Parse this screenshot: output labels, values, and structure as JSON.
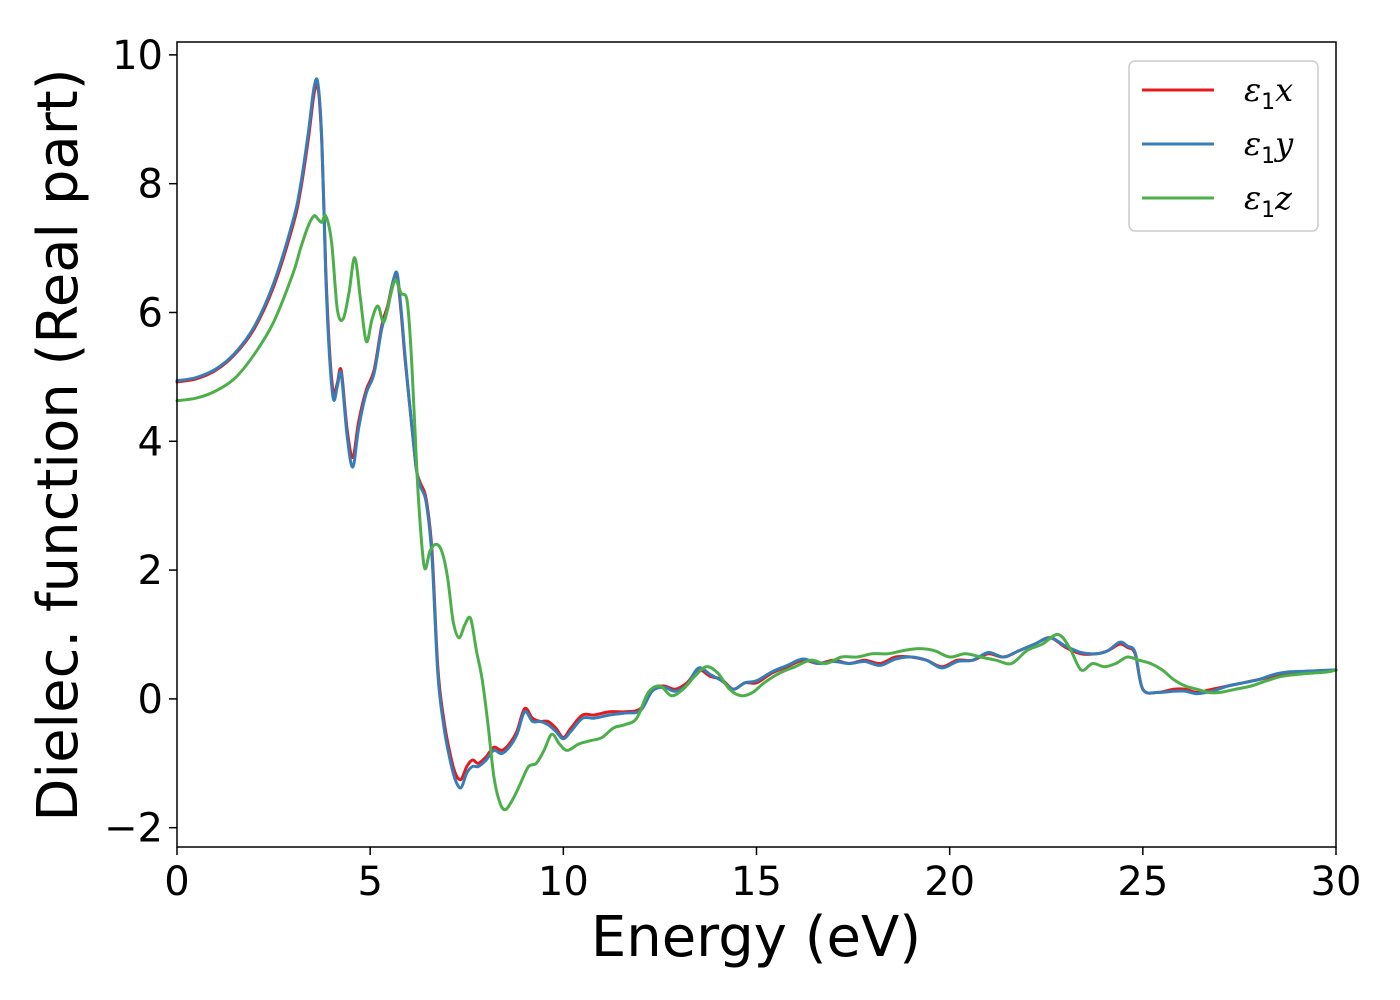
{
  "chart_data": {
    "type": "line",
    "xlabel": "Energy (eV)",
    "ylabel": "Dielec. function (Real part)",
    "xlim": [
      0,
      30
    ],
    "ylim": [
      -2.3,
      10.2
    ],
    "xticks": [
      0,
      5,
      10,
      15,
      20,
      25,
      30
    ],
    "xtick_labels": [
      "0",
      "5",
      "10",
      "15",
      "20",
      "25",
      "30"
    ],
    "yticks": [
      -2,
      0,
      2,
      4,
      6,
      8,
      10
    ],
    "ytick_labels": [
      "−2",
      "0",
      "2",
      "4",
      "6",
      "8",
      "10"
    ],
    "grid": false,
    "legend_position": "top-right",
    "series": [
      {
        "name": "ε1x",
        "legend_base": "ε",
        "legend_sub": "1",
        "legend_var": "x",
        "color": "#e41a1c",
        "x": [
          0,
          0.5,
          1,
          1.5,
          2,
          2.5,
          3,
          3.2,
          3.4,
          3.55,
          3.65,
          3.75,
          3.85,
          3.95,
          4.05,
          4.15,
          4.25,
          4.4,
          4.55,
          4.7,
          4.9,
          5.1,
          5.3,
          5.45,
          5.6,
          5.7,
          5.8,
          5.9,
          6.0,
          6.1,
          6.2,
          6.3,
          6.45,
          6.6,
          6.75,
          6.9,
          7.05,
          7.2,
          7.35,
          7.5,
          7.65,
          7.8,
          8.0,
          8.2,
          8.4,
          8.6,
          8.8,
          9.0,
          9.2,
          9.4,
          9.6,
          9.8,
          10.0,
          10.2,
          10.5,
          10.8,
          11.2,
          11.6,
          12.0,
          12.3,
          12.6,
          12.9,
          13.2,
          13.5,
          13.8,
          14.1,
          14.4,
          14.7,
          15.0,
          15.4,
          15.8,
          16.2,
          16.6,
          17.0,
          17.4,
          17.8,
          18.2,
          18.6,
          19.0,
          19.4,
          19.8,
          20.2,
          20.6,
          21.0,
          21.4,
          21.8,
          22.2,
          22.6,
          23.0,
          23.4,
          23.8,
          24.1,
          24.4,
          24.6,
          24.8,
          25.0,
          25.4,
          25.8,
          26.1,
          26.4,
          26.8,
          27.2,
          27.6,
          28.0,
          28.4,
          28.8,
          29.2,
          29.6,
          30.0
        ],
        "y": [
          4.92,
          4.97,
          5.1,
          5.35,
          5.75,
          6.4,
          7.35,
          7.9,
          8.7,
          9.4,
          9.5,
          8.6,
          6.7,
          5.4,
          4.75,
          4.9,
          5.1,
          4.2,
          3.75,
          4.3,
          4.8,
          5.1,
          5.8,
          6.1,
          6.5,
          6.55,
          6.0,
          5.3,
          4.7,
          4.1,
          3.55,
          3.35,
          3.1,
          2.3,
          0.5,
          -0.3,
          -0.8,
          -1.15,
          -1.25,
          -1.05,
          -0.95,
          -1.0,
          -0.9,
          -0.75,
          -0.8,
          -0.7,
          -0.5,
          -0.15,
          -0.3,
          -0.35,
          -0.35,
          -0.45,
          -0.6,
          -0.45,
          -0.25,
          -0.25,
          -0.2,
          -0.2,
          -0.15,
          0.15,
          0.2,
          0.15,
          0.25,
          0.45,
          0.35,
          0.3,
          0.15,
          0.25,
          0.25,
          0.4,
          0.5,
          0.6,
          0.55,
          0.6,
          0.55,
          0.6,
          0.55,
          0.65,
          0.65,
          0.6,
          0.5,
          0.6,
          0.6,
          0.7,
          0.65,
          0.75,
          0.85,
          0.95,
          0.8,
          0.7,
          0.7,
          0.75,
          0.85,
          0.8,
          0.7,
          0.15,
          0.1,
          0.15,
          0.15,
          0.1,
          0.15,
          0.2,
          0.25,
          0.3,
          0.35,
          0.4,
          0.42,
          0.43,
          0.45
        ]
      },
      {
        "name": "ε1y",
        "legend_base": "ε",
        "legend_sub": "1",
        "legend_var": "y",
        "color": "#377eb8",
        "x": [
          0,
          0.5,
          1,
          1.5,
          2,
          2.5,
          3,
          3.2,
          3.4,
          3.55,
          3.65,
          3.75,
          3.85,
          3.95,
          4.05,
          4.15,
          4.25,
          4.4,
          4.55,
          4.7,
          4.9,
          5.1,
          5.3,
          5.45,
          5.6,
          5.7,
          5.8,
          5.9,
          6.0,
          6.1,
          6.2,
          6.3,
          6.45,
          6.6,
          6.75,
          6.9,
          7.05,
          7.2,
          7.35,
          7.5,
          7.65,
          7.8,
          8.0,
          8.2,
          8.4,
          8.6,
          8.8,
          9.0,
          9.2,
          9.4,
          9.6,
          9.8,
          10.0,
          10.2,
          10.5,
          10.8,
          11.2,
          11.6,
          12.0,
          12.3,
          12.6,
          12.9,
          13.2,
          13.5,
          13.8,
          14.1,
          14.4,
          14.7,
          15.0,
          15.4,
          15.8,
          16.2,
          16.6,
          17.0,
          17.4,
          17.8,
          18.2,
          18.6,
          19.0,
          19.4,
          19.8,
          20.2,
          20.6,
          21.0,
          21.4,
          21.8,
          22.2,
          22.6,
          23.0,
          23.4,
          23.8,
          24.1,
          24.4,
          24.6,
          24.8,
          25.0,
          25.4,
          25.8,
          26.1,
          26.4,
          26.8,
          27.2,
          27.6,
          28.0,
          28.4,
          28.8,
          29.2,
          29.6,
          30.0
        ],
        "y": [
          4.94,
          4.99,
          5.12,
          5.37,
          5.78,
          6.45,
          7.42,
          7.98,
          8.8,
          9.5,
          9.55,
          8.65,
          6.6,
          5.3,
          4.65,
          4.85,
          5.05,
          4.1,
          3.6,
          4.2,
          4.75,
          5.05,
          5.75,
          6.05,
          6.5,
          6.6,
          6.05,
          5.35,
          4.7,
          4.1,
          3.55,
          3.3,
          3.05,
          2.2,
          0.4,
          -0.4,
          -0.9,
          -1.25,
          -1.38,
          -1.15,
          -1.05,
          -1.05,
          -0.95,
          -0.8,
          -0.85,
          -0.75,
          -0.55,
          -0.2,
          -0.35,
          -0.35,
          -0.4,
          -0.5,
          -0.62,
          -0.5,
          -0.3,
          -0.3,
          -0.25,
          -0.22,
          -0.18,
          0.12,
          0.18,
          0.12,
          0.22,
          0.48,
          0.38,
          0.28,
          0.15,
          0.25,
          0.28,
          0.42,
          0.52,
          0.62,
          0.55,
          0.58,
          0.55,
          0.58,
          0.52,
          0.62,
          0.65,
          0.6,
          0.48,
          0.58,
          0.6,
          0.72,
          0.65,
          0.75,
          0.85,
          0.95,
          0.82,
          0.72,
          0.7,
          0.75,
          0.88,
          0.82,
          0.72,
          0.15,
          0.1,
          0.12,
          0.12,
          0.08,
          0.12,
          0.2,
          0.25,
          0.3,
          0.38,
          0.42,
          0.43,
          0.44,
          0.45
        ]
      },
      {
        "name": "ε1z",
        "legend_base": "ε",
        "legend_sub": "1",
        "legend_var": "z",
        "color": "#4daf4a",
        "x": [
          0,
          0.5,
          1,
          1.5,
          2,
          2.5,
          3,
          3.2,
          3.4,
          3.55,
          3.65,
          3.75,
          3.85,
          4.0,
          4.15,
          4.3,
          4.45,
          4.6,
          4.75,
          4.9,
          5.05,
          5.2,
          5.35,
          5.5,
          5.65,
          5.8,
          5.95,
          6.05,
          6.15,
          6.25,
          6.4,
          6.55,
          6.7,
          6.85,
          7.0,
          7.15,
          7.3,
          7.45,
          7.6,
          7.75,
          7.9,
          8.05,
          8.2,
          8.35,
          8.5,
          8.7,
          8.9,
          9.1,
          9.3,
          9.5,
          9.7,
          9.9,
          10.1,
          10.4,
          10.7,
          11.0,
          11.3,
          11.6,
          11.9,
          12.2,
          12.5,
          12.8,
          13.1,
          13.4,
          13.7,
          14.0,
          14.3,
          14.6,
          14.9,
          15.2,
          15.6,
          16.0,
          16.4,
          16.8,
          17.2,
          17.6,
          18.0,
          18.4,
          18.8,
          19.2,
          19.6,
          20.0,
          20.4,
          20.8,
          21.2,
          21.6,
          22.0,
          22.4,
          22.8,
          23.1,
          23.4,
          23.7,
          24.0,
          24.3,
          24.6,
          24.9,
          25.2,
          25.5,
          25.8,
          26.1,
          26.4,
          26.7,
          27.0,
          27.4,
          27.8,
          28.2,
          28.6,
          29.0,
          29.4,
          29.8,
          30.0
        ],
        "y": [
          4.63,
          4.67,
          4.78,
          4.98,
          5.35,
          5.85,
          6.6,
          7.0,
          7.35,
          7.5,
          7.45,
          7.4,
          7.5,
          7.1,
          6.05,
          5.9,
          6.3,
          6.85,
          6.2,
          5.55,
          5.9,
          6.1,
          5.85,
          6.2,
          6.5,
          6.3,
          6.2,
          5.5,
          4.3,
          3.1,
          2.05,
          2.3,
          2.4,
          2.3,
          1.9,
          1.2,
          0.95,
          1.15,
          1.25,
          0.75,
          0.3,
          -0.4,
          -1.2,
          -1.6,
          -1.72,
          -1.55,
          -1.3,
          -1.05,
          -1.0,
          -0.8,
          -0.55,
          -0.7,
          -0.8,
          -0.7,
          -0.65,
          -0.6,
          -0.45,
          -0.4,
          -0.3,
          0.1,
          0.2,
          0.05,
          0.15,
          0.35,
          0.5,
          0.4,
          0.15,
          0.05,
          0.1,
          0.25,
          0.4,
          0.5,
          0.6,
          0.55,
          0.65,
          0.65,
          0.7,
          0.7,
          0.75,
          0.78,
          0.75,
          0.65,
          0.7,
          0.65,
          0.6,
          0.55,
          0.75,
          0.85,
          1.0,
          0.8,
          0.45,
          0.55,
          0.5,
          0.55,
          0.65,
          0.6,
          0.55,
          0.45,
          0.3,
          0.2,
          0.15,
          0.1,
          0.1,
          0.15,
          0.2,
          0.28,
          0.35,
          0.38,
          0.4,
          0.42,
          0.45
        ]
      }
    ]
  }
}
